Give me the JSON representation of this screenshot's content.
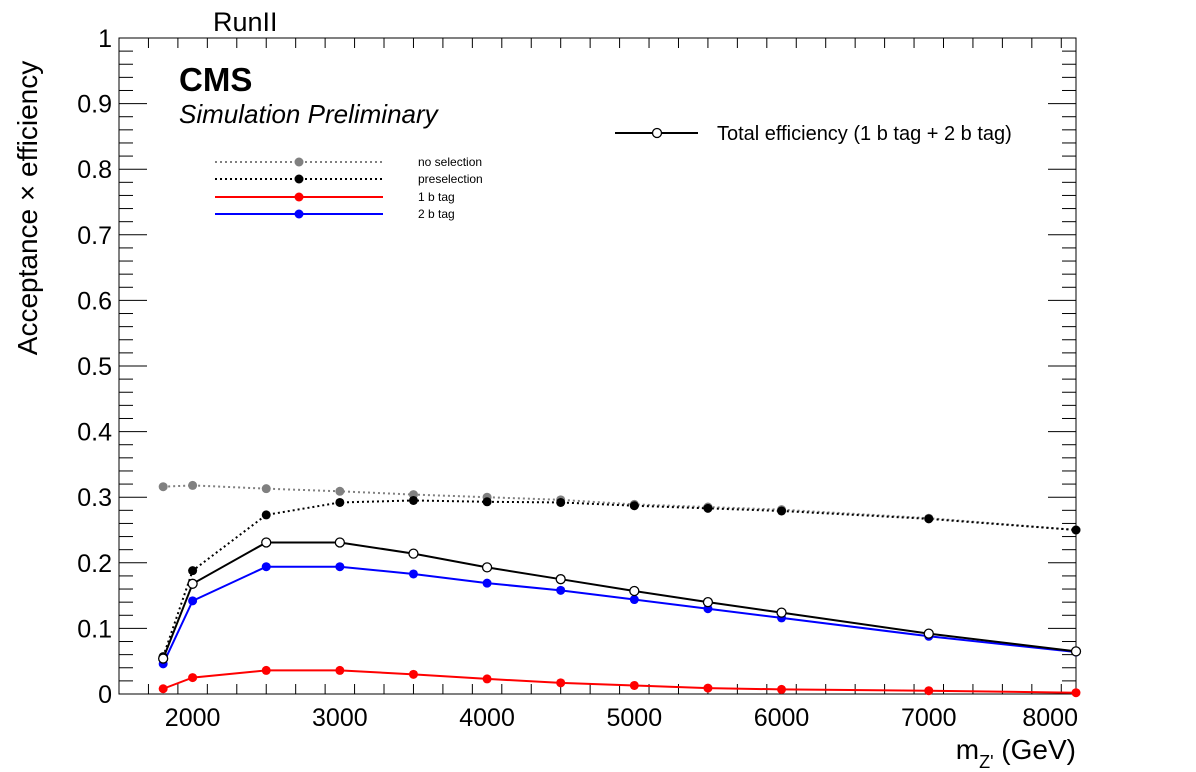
{
  "chart_data": {
    "type": "line",
    "top_label": "RunII",
    "cms_label": "CMS",
    "sim_label": "Simulation Preliminary",
    "xlabel_main": "m",
    "xlabel_sub": "Z'",
    "xlabel_unit": " (GeV)",
    "ylabel": "Acceptance × efficiency",
    "xlim": [
      1500,
      8000
    ],
    "ylim": [
      0,
      1
    ],
    "x_ticks": [
      2000,
      3000,
      4000,
      5000,
      6000,
      7000,
      8000
    ],
    "y_ticks": [
      0,
      0.1,
      0.2,
      0.3,
      0.4,
      0.5,
      0.6,
      0.7,
      0.8,
      0.9,
      1
    ],
    "y_tick_labels": [
      "0",
      "0.1",
      "0.2",
      "0.3",
      "0.4",
      "0.5",
      "0.6",
      "0.7",
      "0.8",
      "0.9",
      "1"
    ],
    "legend_position": "top-left",
    "x": [
      1800,
      2000,
      2500,
      3000,
      3500,
      4000,
      4500,
      5000,
      5500,
      6000,
      7000,
      8000
    ],
    "series": [
      {
        "name": "no selection",
        "color": "#808080",
        "style": "dotted",
        "marker": "filled",
        "values": [
          0.316,
          0.318,
          0.313,
          0.309,
          0.304,
          0.3,
          0.296,
          0.289,
          0.285,
          0.281,
          0.268,
          0.25
        ]
      },
      {
        "name": "preselection",
        "color": "#000000",
        "style": "dotted",
        "marker": "filled",
        "values": [
          0.057,
          0.188,
          0.273,
          0.292,
          0.295,
          0.293,
          0.292,
          0.287,
          0.283,
          0.279,
          0.267,
          0.25
        ]
      },
      {
        "name": "1 b tag",
        "color": "#ff0000",
        "style": "solid",
        "marker": "filled",
        "values": [
          0.008,
          0.025,
          0.036,
          0.036,
          0.03,
          0.023,
          0.017,
          0.013,
          0.009,
          0.007,
          0.005,
          0.002
        ]
      },
      {
        "name": "2 b tag",
        "color": "#0000ff",
        "style": "solid",
        "marker": "filled",
        "values": [
          0.046,
          0.142,
          0.194,
          0.194,
          0.183,
          0.169,
          0.158,
          0.144,
          0.13,
          0.116,
          0.088,
          0.064
        ]
      },
      {
        "name": "Total efficiency (1 b tag + 2 b tag)",
        "color": "#000000",
        "style": "solid",
        "marker": "open",
        "values": [
          0.054,
          0.168,
          0.231,
          0.231,
          0.214,
          0.193,
          0.175,
          0.157,
          0.14,
          0.124,
          0.092,
          0.065
        ]
      }
    ]
  }
}
